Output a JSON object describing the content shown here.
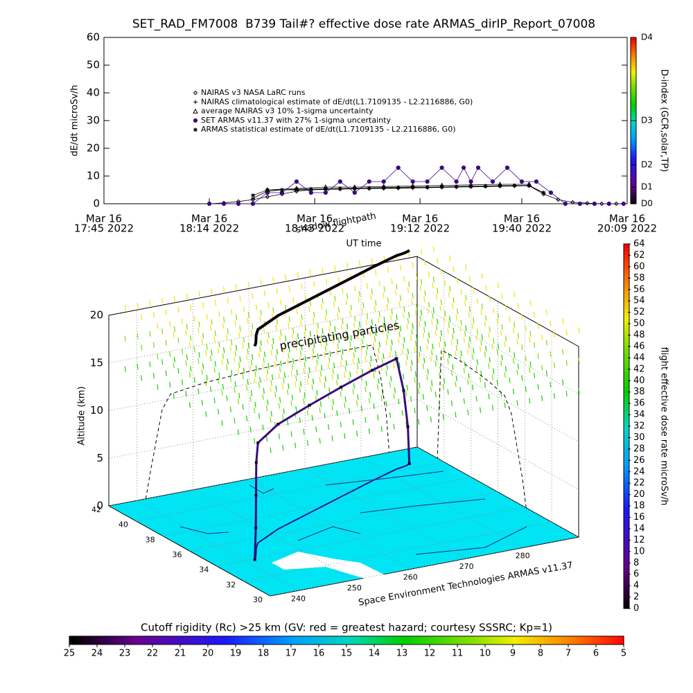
{
  "chart_data": [
    {
      "type": "line",
      "title": "SET_RAD_FM7008  B739 Tail#? effective dose rate ARMAS_dirIP_Report_07008",
      "xlabel": "UT time",
      "ylabel": "dE/dt microSv/h",
      "xlim": [
        "17:45",
        "20:09"
      ],
      "xticks": [
        {
          "value": "17:45",
          "label": [
            "Mar 16",
            "17:45 2022"
          ]
        },
        {
          "value": "18:14",
          "label": [
            "Mar 16",
            "18:14 2022"
          ]
        },
        {
          "value": "18:43",
          "label": [
            "Mar 16",
            "18:43 2022"
          ]
        },
        {
          "value": "19:12",
          "label": [
            "Mar 16",
            "19:12 2022"
          ]
        },
        {
          "value": "19:40",
          "label": [
            "Mar 16",
            "19:40 2022"
          ]
        },
        {
          "value": "20:09",
          "label": [
            "Mar 16",
            "20:09 2022"
          ]
        }
      ],
      "ylim": [
        0,
        60
      ],
      "yticks": [
        0,
        10,
        20,
        30,
        40,
        50,
        60
      ],
      "y2label": "D-index (GCR,solar,TP)",
      "y2lim": [
        0,
        60
      ],
      "y2ticks": [
        {
          "value": 0,
          "label": "D0"
        },
        {
          "value": 6,
          "label": "D1"
        },
        {
          "value": 14,
          "label": "D2"
        },
        {
          "value": 30,
          "label": "D3"
        },
        {
          "value": 60,
          "label": "D4"
        }
      ],
      "series": [
        {
          "name": "NAIRAS v3 NASA LaRC runs",
          "marker": "diamond",
          "color": "#000000",
          "x": [
            "18:14",
            "18:18",
            "18:22",
            "18:26",
            "18:30",
            "18:34",
            "18:38",
            "18:42",
            "18:46",
            "18:50",
            "18:54",
            "18:58",
            "19:02",
            "19:06",
            "19:10",
            "19:14",
            "19:18",
            "19:22",
            "19:26",
            "19:30",
            "19:34",
            "19:38",
            "19:42",
            "19:46",
            "19:50",
            "19:54",
            "19:58",
            "20:02",
            "20:06"
          ],
          "values": [
            0,
            0.3,
            0.8,
            1.5,
            2.5,
            3.5,
            4.5,
            5,
            5.2,
            5.3,
            5.4,
            5.5,
            5.6,
            5.7,
            5.8,
            5.9,
            6,
            6.1,
            6.2,
            6.3,
            6.4,
            6.5,
            6.5,
            3.5,
            1.5,
            0.5,
            0.2,
            0,
            0
          ]
        },
        {
          "name": "NAIRAS climatological estimate of dE/dt(L1.7109135 - L2.2116886, G0)",
          "marker": "plus",
          "color": "#000000",
          "x": [
            "18:26",
            "18:30",
            "18:34",
            "18:38",
            "18:42",
            "18:46",
            "18:50",
            "18:54",
            "18:58",
            "19:02",
            "19:06",
            "19:10",
            "19:14",
            "19:18",
            "19:22",
            "19:26",
            "19:30",
            "19:34",
            "19:38",
            "19:42",
            "19:46"
          ],
          "values": [
            2,
            4.5,
            5,
            5,
            5,
            5.2,
            5.3,
            5.4,
            5.5,
            5.5,
            5.6,
            5.7,
            5.8,
            5.9,
            6,
            6.1,
            6.2,
            6.3,
            6.4,
            6.5,
            4
          ]
        },
        {
          "name": "average NAIRAS v3 10% 1-sigma uncertainty",
          "marker": "triangle",
          "color": "#000000",
          "x": [
            "18:30",
            "18:38",
            "18:46",
            "18:54",
            "19:02",
            "19:10",
            "19:18",
            "19:26",
            "19:34",
            "19:42"
          ],
          "values": [
            5,
            5.5,
            6,
            6,
            6.2,
            6.4,
            6.6,
            6.8,
            7,
            7
          ]
        },
        {
          "name": "SET ARMAS v11.37 with 27% 1-sigma uncertainty",
          "marker": "dot",
          "color": "#3a0a80",
          "x": [
            "18:14",
            "18:18",
            "18:22",
            "18:26",
            "18:30",
            "18:34",
            "18:38",
            "18:42",
            "18:46",
            "18:50",
            "18:54",
            "18:58",
            "19:02",
            "19:06",
            "19:10",
            "19:14",
            "19:18",
            "19:22",
            "19:24",
            "19:26",
            "19:28",
            "19:32",
            "19:36",
            "19:40",
            "19:44",
            "19:48",
            "19:52",
            "19:56",
            "20:00",
            "20:04",
            "20:08"
          ],
          "values": [
            0,
            0,
            0,
            0,
            4,
            4,
            8,
            4,
            4,
            8,
            4,
            8,
            8,
            13,
            8,
            8,
            13,
            8,
            13,
            8,
            13,
            8,
            13,
            8,
            8,
            4,
            0,
            0,
            0,
            0,
            0
          ]
        },
        {
          "name": "ARMAS statistical estimate of dE/dt(L1.7109135 - L2.2116886, G0)",
          "marker": "asterisk",
          "color": "#000000",
          "x": [
            "18:26",
            "18:30",
            "18:34",
            "18:38",
            "18:42",
            "18:46",
            "18:50",
            "18:54",
            "18:58",
            "19:02",
            "19:06",
            "19:10",
            "19:14",
            "19:18",
            "19:22",
            "19:26",
            "19:30",
            "19:34",
            "19:38",
            "19:42",
            "19:46"
          ],
          "values": [
            3,
            5,
            5,
            5.2,
            5.3,
            5.4,
            5.5,
            5.6,
            5.7,
            5.8,
            5.9,
            6,
            6,
            6.1,
            6.2,
            6.3,
            6.4,
            6.5,
            6.6,
            6.6,
            4
          ]
        }
      ]
    },
    {
      "type": "flight3d",
      "annotations": [
        "shadow flightpath",
        "precipitating particles"
      ],
      "credit": "Space Environment Technologies ARMAS v11.37",
      "zlabel": "Altitude (km)",
      "zlim": [
        0,
        20
      ],
      "zticks": [
        0,
        5,
        10,
        15,
        20
      ],
      "latlim": [
        30,
        42
      ],
      "latticks": [
        30,
        32,
        34,
        36,
        38,
        40,
        42
      ],
      "lonlim": [
        235,
        290
      ],
      "lonticks": [
        240,
        250,
        260,
        270,
        280
      ],
      "flight": {
        "lat": [
          33.9,
          34.2,
          34.6,
          35.0,
          35.5,
          36.5,
          37.5,
          38.5,
          39.5,
          40.2,
          40.3,
          40.4,
          40.5
        ],
        "lon": [
          241.6,
          242.5,
          243.5,
          244.5,
          246,
          252,
          260,
          268,
          276,
          282,
          283.5,
          284.5,
          285
        ],
        "alt": [
          0,
          3,
          6,
          9,
          10.5,
          11,
          11.3,
          11.5,
          11.6,
          11.6,
          8,
          4,
          0
        ]
      },
      "colorbar": {
        "label": "flight effective dose rate microSv/h",
        "lim": [
          0,
          64
        ],
        "ticks": [
          0,
          2,
          4,
          6,
          8,
          10,
          12,
          14,
          16,
          18,
          20,
          22,
          24,
          26,
          28,
          30,
          32,
          34,
          36,
          38,
          40,
          42,
          44,
          46,
          48,
          50,
          52,
          54,
          56,
          58,
          60,
          62,
          64
        ]
      }
    },
    {
      "type": "colorbar",
      "title": "Cutoff rigidity (Rc) >25 km (GV: red = greatest hazard; courtesy SSSRC; Kp=1)",
      "lim": [
        25,
        5
      ],
      "ticks": [
        25,
        24,
        23,
        22,
        21,
        20,
        19,
        18,
        17,
        16,
        15,
        14,
        13,
        12,
        11,
        10,
        9,
        8,
        7,
        6,
        5
      ]
    }
  ]
}
